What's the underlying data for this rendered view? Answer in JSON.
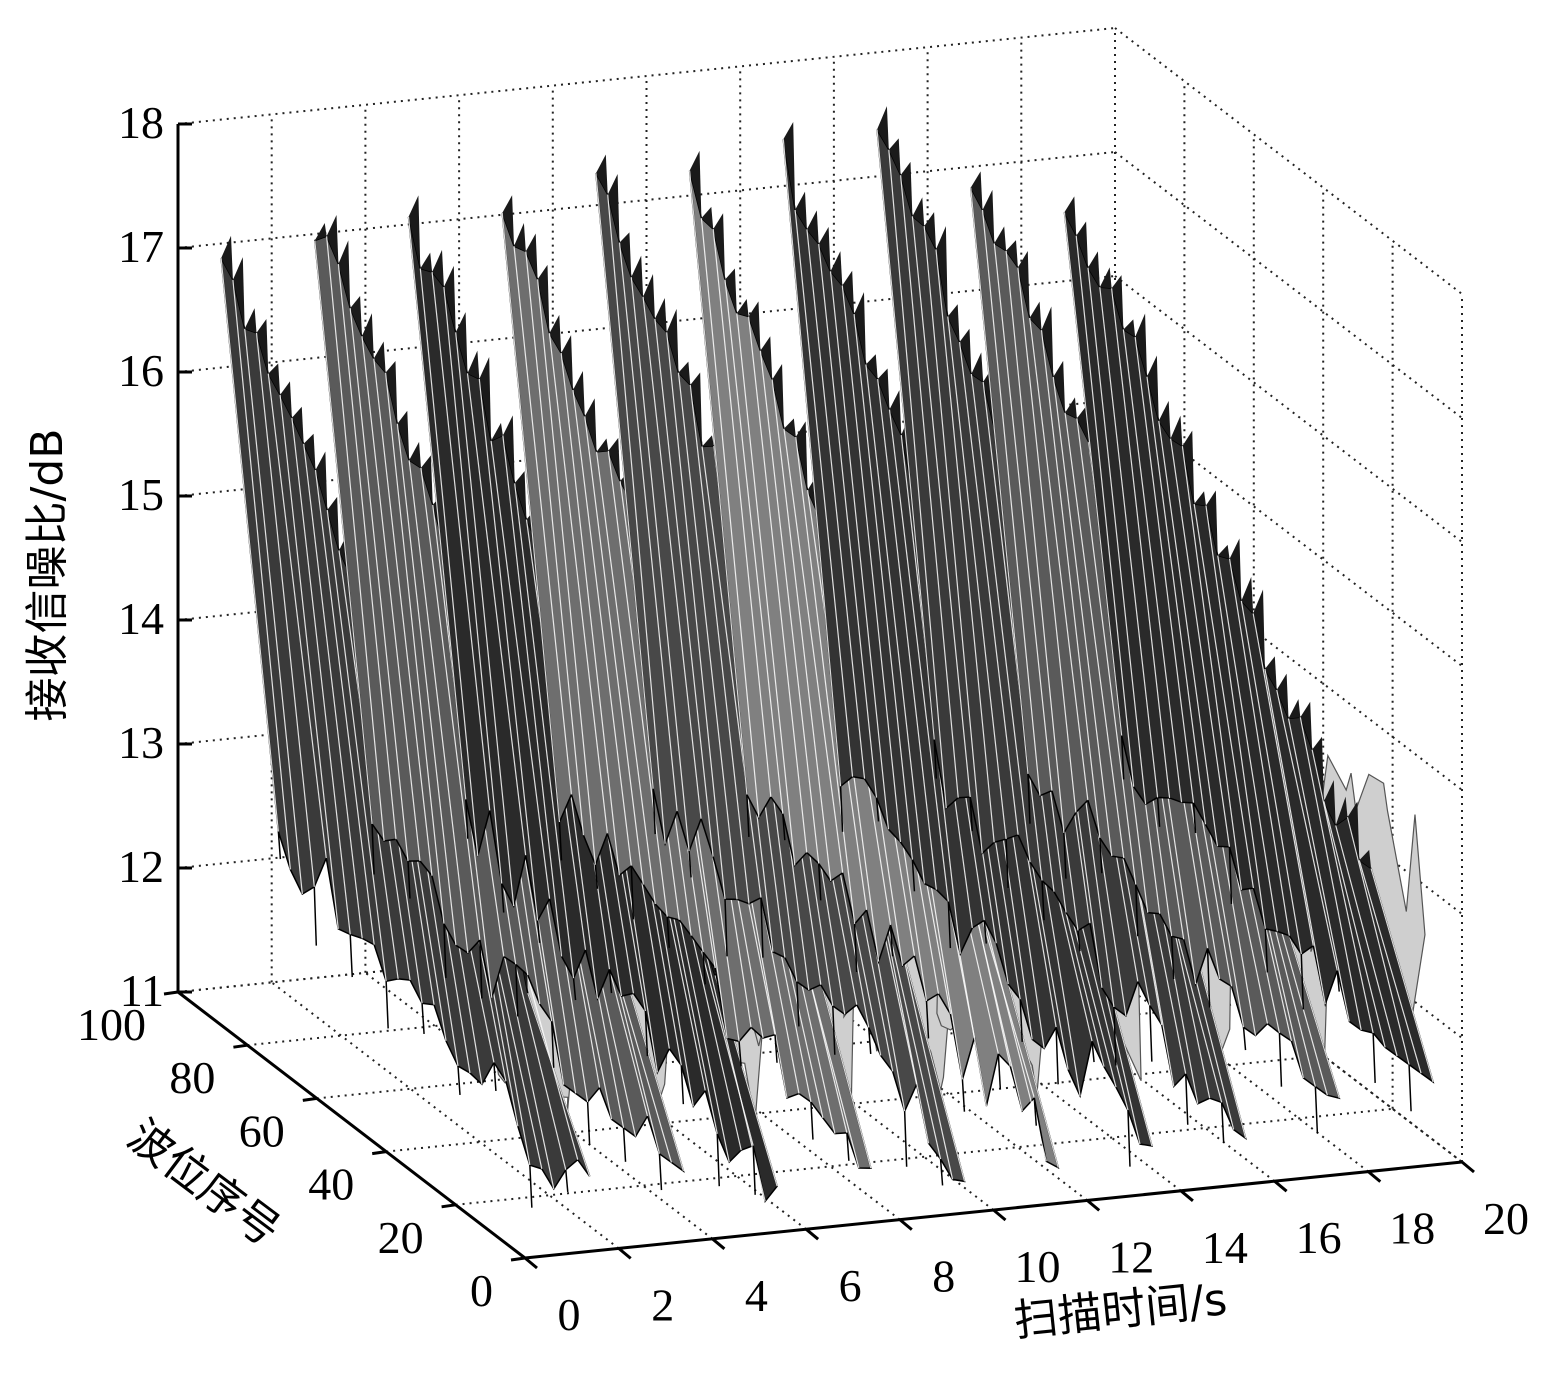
{
  "chart_data": {
    "type": "surface3d",
    "xlabel": "扫描时间/s",
    "ylabel": "波位序号",
    "zlabel": "接收信噪比/dB",
    "x_ticks": [
      "0",
      "2",
      "4",
      "6",
      "8",
      "10",
      "12",
      "14",
      "16",
      "18",
      "20"
    ],
    "y_ticks": [
      "0",
      "20",
      "40",
      "60",
      "80",
      "100"
    ],
    "z_ticks": [
      "11",
      "12",
      "13",
      "14",
      "15",
      "16",
      "17",
      "18"
    ],
    "xlim": [
      0,
      20
    ],
    "ylim": [
      0,
      100
    ],
    "zlim": [
      11,
      18
    ],
    "grid": true,
    "colormap": "gray",
    "peaks": [
      {
        "t": 1.0,
        "snr_max": 17.2,
        "snr_min": 11.0
      },
      {
        "t": 3.0,
        "snr_max": 17.4,
        "snr_min": 11.4
      },
      {
        "t": 5.0,
        "snr_max": 17.3,
        "snr_min": 11.0
      },
      {
        "t": 7.0,
        "snr_max": 17.4,
        "snr_min": 11.2
      },
      {
        "t": 9.0,
        "snr_max": 17.6,
        "snr_min": 11.0
      },
      {
        "t": 11.0,
        "snr_max": 17.4,
        "snr_min": 11.1
      },
      {
        "t": 13.0,
        "snr_max": 17.5,
        "snr_min": 11.0
      },
      {
        "t": 15.0,
        "snr_max": 17.8,
        "snr_min": 11.2
      },
      {
        "t": 17.0,
        "snr_max": 17.3,
        "snr_min": 11.4
      },
      {
        "t": 19.0,
        "snr_max": 17.0,
        "snr_min": 11.5
      }
    ]
  }
}
